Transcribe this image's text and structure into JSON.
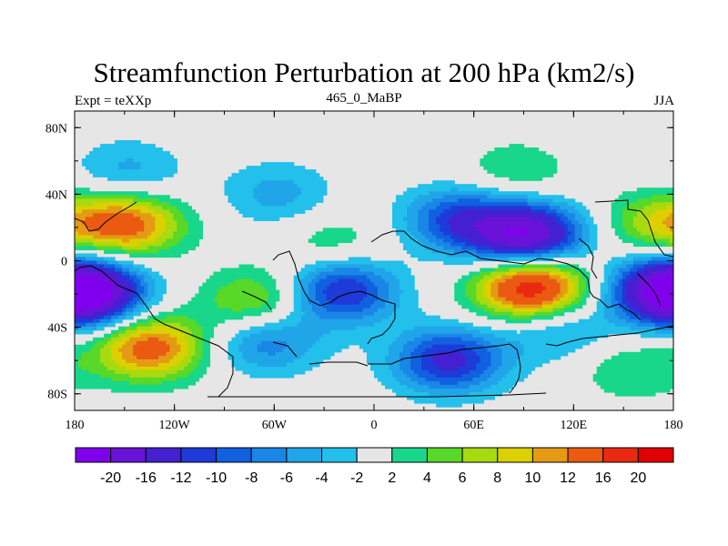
{
  "title": "Streamfunction Perturbation at 200 hPa (km2/s)",
  "left_label": "Expt = teXXp",
  "center_label": "465_0_MaBP",
  "right_label": "JJA",
  "lat_ticks": [
    "80N",
    "40N",
    "0",
    "40S",
    "80S"
  ],
  "lon_ticks": [
    "180",
    "120W",
    "60W",
    "0",
    "60E",
    "120E",
    "180"
  ],
  "colorbar": {
    "labels": [
      "-20",
      "-16",
      "-12",
      "-10",
      "-8",
      "-6",
      "-4",
      "-2",
      "2",
      "4",
      "6",
      "8",
      "10",
      "12",
      "16",
      "20"
    ],
    "colors": [
      "#8000ee",
      "#6a12d8",
      "#4420d0",
      "#1e3ad8",
      "#1060e0",
      "#1a86e6",
      "#20a6e8",
      "#22c0ea",
      "#e6e6e6",
      "#18d68a",
      "#58d828",
      "#a8da10",
      "#dcd000",
      "#e49a14",
      "#ea5a10",
      "#ea2a10",
      "#e00000"
    ]
  },
  "map_data": {
    "levels": [
      -20,
      -16,
      -12,
      -10,
      -8,
      -6,
      -4,
      -2,
      2,
      4,
      6,
      8,
      10,
      12,
      16,
      20
    ],
    "units": "km2/s",
    "pressure": "200 hPa",
    "season": "JJA",
    "lon_range": [
      -180,
      180
    ],
    "lat_range": [
      -90,
      90
    ],
    "anomalies": [
      {
        "lon": -148,
        "lat": 22,
        "peak": 13
      },
      {
        "lon": -172,
        "lat": -20,
        "peak": -20
      },
      {
        "lon": -135,
        "lat": -52,
        "peak": 14
      },
      {
        "lon": -148,
        "lat": 53,
        "peak": -5
      },
      {
        "lon": -70,
        "lat": -25,
        "peak": 8
      },
      {
        "lon": -20,
        "lat": -18,
        "peak": -13
      },
      {
        "lon": 45,
        "lat": -60,
        "peak": -13
      },
      {
        "lon": 50,
        "lat": 25,
        "peak": -10
      },
      {
        "lon": 92,
        "lat": 15,
        "peak": -20
      },
      {
        "lon": 95,
        "lat": -16,
        "peak": 20
      },
      {
        "lon": 85,
        "lat": 53,
        "peak": 4
      },
      {
        "lon": -25,
        "lat": 10,
        "peak": 4
      },
      {
        "lon": -65,
        "lat": -48,
        "peak": -8
      },
      {
        "lon": 110,
        "lat": -40,
        "peak": -6
      },
      {
        "lon": 170,
        "lat": 22,
        "peak": 7
      },
      {
        "lon": 172,
        "lat": -16,
        "peak": -10
      },
      {
        "lon": -58,
        "lat": 40,
        "peak": -5
      },
      {
        "lon": 155,
        "lat": -65,
        "peak": 4
      }
    ]
  }
}
